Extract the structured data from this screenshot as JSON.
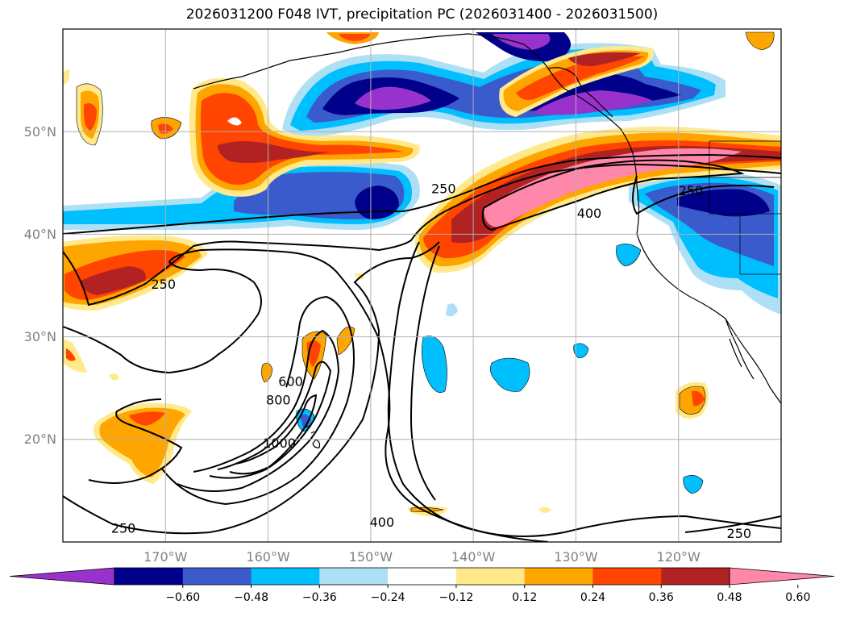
{
  "title": "2026031200 F048 IVT, precipitation PC (2026031400 - 2026031500)",
  "map": {
    "lon_range": [
      -180,
      -110
    ],
    "lat_range": [
      10,
      60
    ],
    "lat_ticks": [
      20,
      30,
      40,
      50
    ],
    "lat_tick_labels": [
      "20°N",
      "30°N",
      "40°N",
      "50°N"
    ],
    "lon_ticks": [
      -170,
      -160,
      -150,
      -140,
      -130,
      -120
    ],
    "lon_tick_labels": [
      "170°W",
      "160°W",
      "150°W",
      "140°W",
      "130°W",
      "120°W"
    ],
    "grid": true
  },
  "ivt_contour_labels": [
    {
      "text": "250",
      "lon": -170.2,
      "lat": 34.7
    },
    {
      "text": "250",
      "lon": -142.9,
      "lat": 44.0
    },
    {
      "text": "400",
      "lon": -128.7,
      "lat": 41.6
    },
    {
      "text": "250",
      "lon": -118.8,
      "lat": 43.8
    },
    {
      "text": "600",
      "lon": -157.8,
      "lat": 25.2
    },
    {
      "text": "800",
      "lon": -159.0,
      "lat": 23.4
    },
    {
      "text": "1000",
      "lon": -158.9,
      "lat": 19.2
    },
    {
      "text": "250",
      "lon": -174.1,
      "lat": 10.9
    },
    {
      "text": "400",
      "lon": -148.9,
      "lat": 11.5
    },
    {
      "text": "250",
      "lon": -114.1,
      "lat": 10.4
    }
  ],
  "colorbar": {
    "levels": [
      "−0.60",
      "−0.48",
      "−0.36",
      "−0.24",
      "−0.12",
      "0.12",
      "0.24",
      "0.36",
      "0.48",
      "0.60"
    ],
    "colors": [
      "#9932CC",
      "#00008B",
      "#3A5BCB",
      "#00BFFF",
      "#ADE0F5",
      "#FFFFFF",
      "#FFE98A",
      "#FFA500",
      "#FF4500",
      "#B22222",
      "#FF88AA"
    ]
  }
}
